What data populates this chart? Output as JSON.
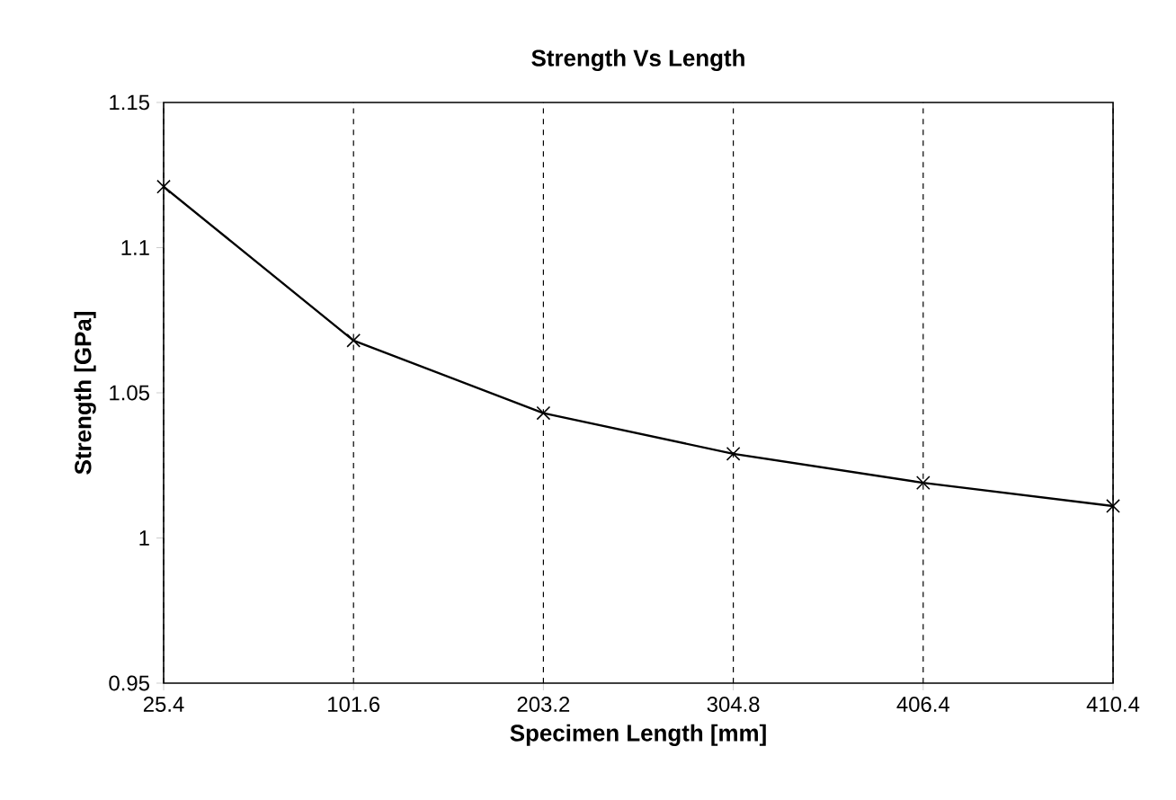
{
  "chart_data": {
    "type": "line",
    "title": "Strength Vs Length",
    "xlabel": "Specimen Length [mm]",
    "ylabel": "Strength [GPa]",
    "categories": [
      "25.4",
      "101.6",
      "203.2",
      "304.8",
      "406.4",
      "410.4"
    ],
    "series": [
      {
        "color": "#000000",
        "values": [
          1.121,
          1.068,
          1.043,
          1.029,
          1.019,
          1.011
        ]
      }
    ],
    "ylim": [
      0.95,
      1.15
    ],
    "yticks": [
      0.95,
      1,
      1.05,
      1.1,
      1.15
    ],
    "grid": "x",
    "marker": "cross",
    "line_style": "solid"
  }
}
